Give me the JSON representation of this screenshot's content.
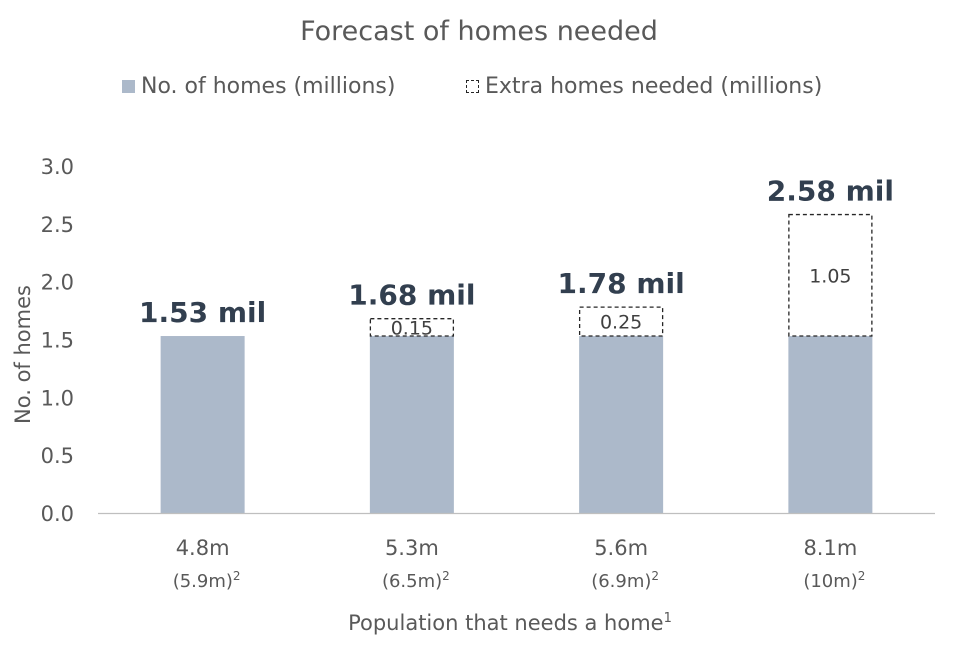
{
  "chart_data": {
    "type": "bar",
    "stacked": true,
    "title": "Forecast of homes needed",
    "ylabel": "No. of homes",
    "xlabel": "Population that needs a home",
    "xlabel_superscript": "1",
    "ylim": [
      0,
      3.0
    ],
    "yticks": [
      "0.0",
      "0.5",
      "1.0",
      "1.5",
      "2.0",
      "2.5",
      "3.0"
    ],
    "categories": [
      "4.8m",
      "5.3m",
      "5.6m",
      "8.1m"
    ],
    "category_sublabels": [
      "(5.9m)",
      "(6.5m)",
      "(6.9m)",
      "(10m)"
    ],
    "sublabel_superscript": "2",
    "series": [
      {
        "name": "No. of homes (millions)",
        "values": [
          1.53,
          1.53,
          1.53,
          1.53
        ],
        "color": "#acb9ca",
        "style": "solid"
      },
      {
        "name": "Extra homes needed (millions)",
        "values": [
          0,
          0.15,
          0.25,
          1.05
        ],
        "color": "#ffffff",
        "style": "dashed"
      }
    ],
    "extra_labels": [
      "",
      "0.15",
      "0.25",
      "1.05"
    ],
    "total_labels": [
      "1.53 mil",
      "1.68 mil",
      "1.78 mil",
      "2.58 mil"
    ],
    "totals": [
      1.53,
      1.68,
      1.78,
      2.58
    ],
    "legend_position": "top",
    "grid": false
  }
}
